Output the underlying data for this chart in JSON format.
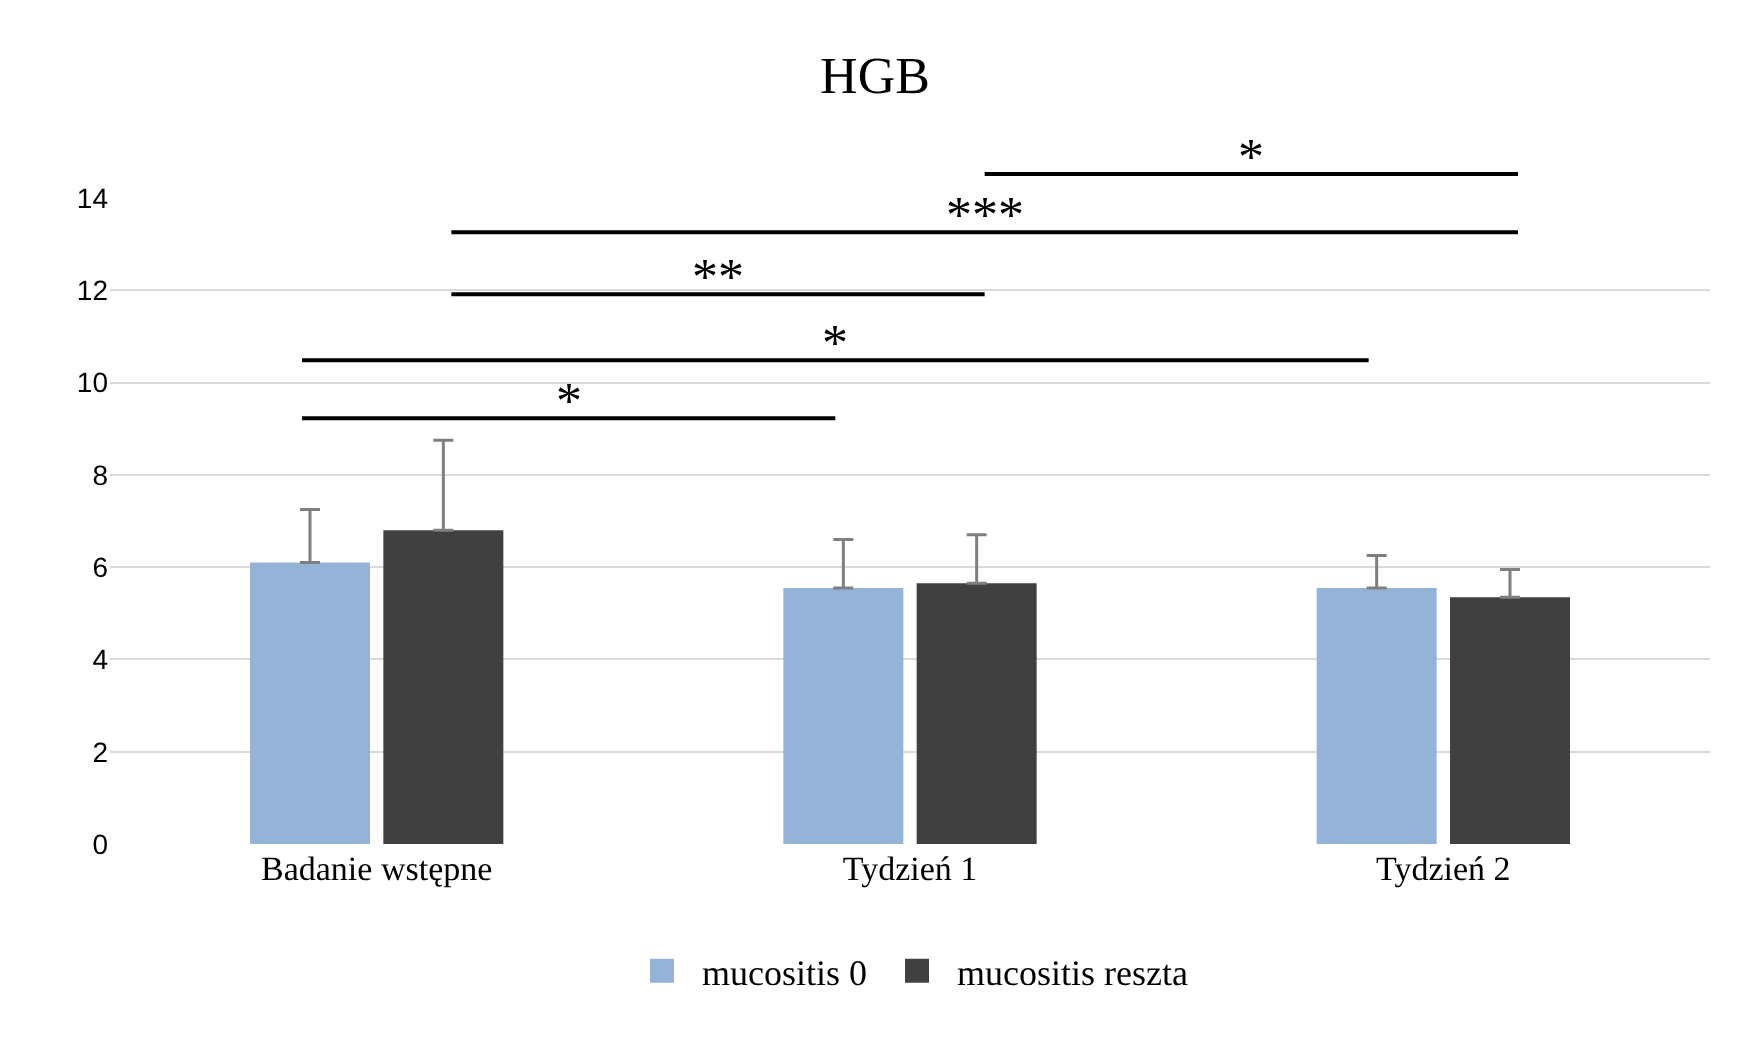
{
  "chart_data": {
    "type": "bar",
    "title": "HGB",
    "categories": [
      "Badanie wstępne",
      "Tydzień 1",
      "Tydzień 2"
    ],
    "series": [
      {
        "name": "mucositis 0",
        "color": "#95b3d7",
        "values": [
          6.1,
          5.55,
          5.55
        ],
        "errors": [
          [
            6.1,
            7.25
          ],
          [
            5.55,
            6.6
          ],
          [
            5.55,
            6.25
          ]
        ]
      },
      {
        "name": "mucositis reszta",
        "color": "#404040",
        "values": [
          6.8,
          5.65,
          5.35
        ],
        "errors": [
          [
            6.8,
            8.75
          ],
          [
            5.65,
            6.7
          ],
          [
            5.35,
            5.95
          ]
        ]
      }
    ],
    "ylim": [
      0,
      14
    ],
    "yticks": [
      0,
      2,
      4,
      6,
      8,
      10,
      12,
      14
    ],
    "grid": "y",
    "legend": "bottom",
    "annotations": [
      "*",
      "*",
      "**",
      "***",
      "*"
    ]
  }
}
